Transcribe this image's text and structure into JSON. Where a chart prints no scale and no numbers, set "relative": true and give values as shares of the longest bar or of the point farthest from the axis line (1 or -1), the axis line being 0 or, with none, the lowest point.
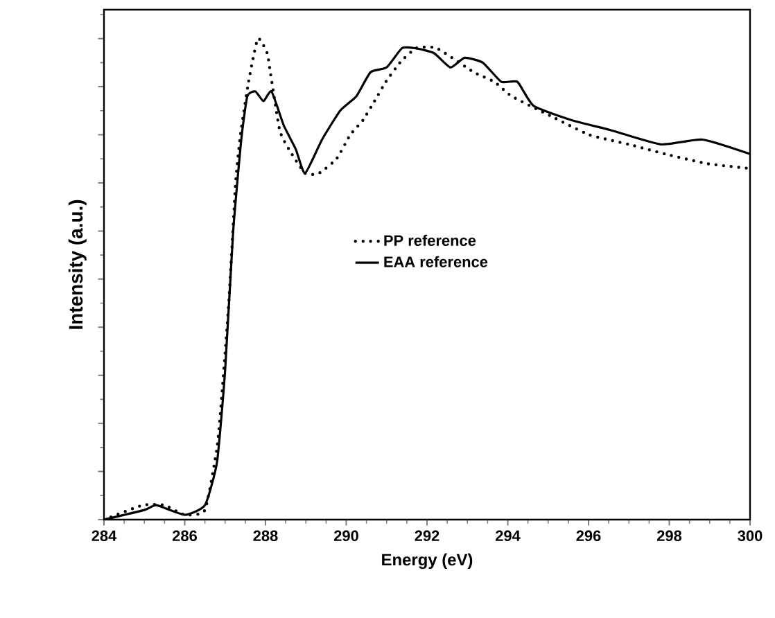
{
  "chart_data": {
    "type": "line",
    "xlabel": "Energy (eV)",
    "ylabel": "Intensity (a.u.)",
    "relative": true,
    "xlim": [
      284,
      300
    ],
    "xticks": [
      284,
      286,
      288,
      290,
      292,
      294,
      296,
      298,
      300
    ],
    "tick_labels": "x",
    "legend": "right",
    "grid": false,
    "marker": "none",
    "series": [
      {
        "name": "PP reference",
        "color": "#000000",
        "line_style": "dotted",
        "x": [
          284,
          284.96,
          285.5,
          286,
          286.5,
          286.8,
          286.92,
          287.09,
          287.26,
          287.38,
          287.58,
          287.81,
          288.04,
          288.12,
          288.35,
          288.58,
          288.98,
          289.32,
          289.76,
          290.1,
          290.41,
          290.7,
          290.98,
          291.33,
          291.73,
          292.24,
          293.16,
          293.67,
          294.1,
          295.04,
          296.02,
          297.0,
          297.9,
          298.94,
          300
        ],
        "values": [
          0,
          0.03,
          0.03,
          0.01,
          0.02,
          0.15,
          0.26,
          0.45,
          0.7,
          0.8,
          0.91,
          1.0,
          0.97,
          0.93,
          0.81,
          0.77,
          0.72,
          0.72,
          0.75,
          0.8,
          0.83,
          0.87,
          0.91,
          0.95,
          0.98,
          0.98,
          0.93,
          0.91,
          0.88,
          0.84,
          0.8,
          0.78,
          0.76,
          0.74,
          0.73
        ]
      },
      {
        "name": "EAA reference",
        "color": "#000000",
        "line_style": "solid",
        "x": [
          284,
          285,
          285.3,
          286,
          286.5,
          286.8,
          287.0,
          287.2,
          287.4,
          287.55,
          287.75,
          287.95,
          288.15,
          288.45,
          288.75,
          288.98,
          289.4,
          289.85,
          290.25,
          290.6,
          291.0,
          291.38,
          291.7,
          292.17,
          292.58,
          292.93,
          293.38,
          293.84,
          294.24,
          294.64,
          295.6,
          296.53,
          297.79,
          298.82,
          300
        ],
        "values": [
          0,
          0.02,
          0.03,
          0.01,
          0.03,
          0.12,
          0.31,
          0.6,
          0.79,
          0.88,
          0.89,
          0.87,
          0.89,
          0.82,
          0.77,
          0.72,
          0.79,
          0.85,
          0.88,
          0.93,
          0.94,
          0.98,
          0.98,
          0.97,
          0.94,
          0.96,
          0.95,
          0.91,
          0.91,
          0.86,
          0.83,
          0.81,
          0.78,
          0.79,
          0.76
        ]
      }
    ]
  }
}
